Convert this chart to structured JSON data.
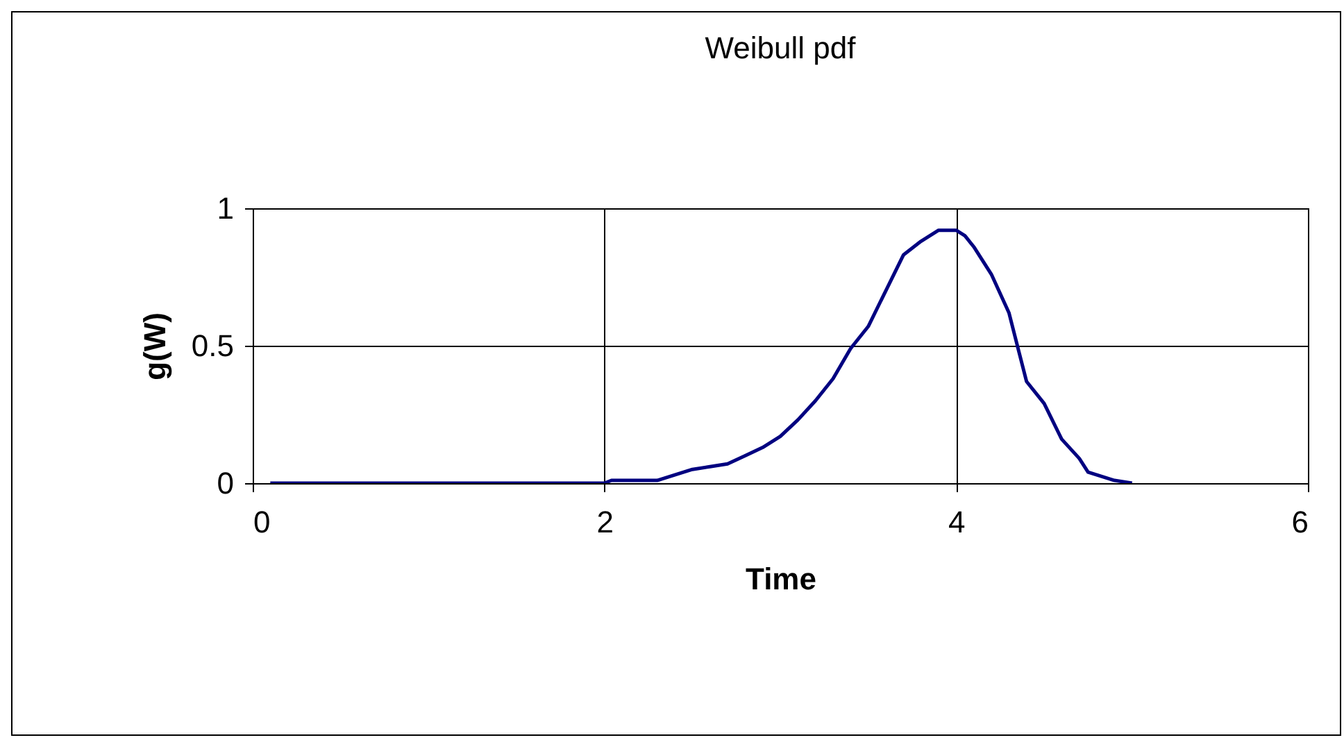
{
  "chart_data": {
    "type": "line",
    "title": "Weibull pdf",
    "xlabel": "Time",
    "ylabel": "g(W)",
    "x": [
      0.1,
      0.5,
      1,
      1.5,
      2,
      2.04,
      2.1,
      2.2,
      2.3,
      2.4,
      2.5,
      2.6,
      2.7,
      2.8,
      2.9,
      3,
      3.1,
      3.2,
      3.3,
      3.4,
      3.5,
      3.6,
      3.7,
      3.8,
      3.9,
      4,
      4.05,
      4.1,
      4.2,
      4.3,
      4.4,
      4.5,
      4.6,
      4.7,
      4.75,
      4.8,
      4.85,
      4.9,
      5
    ],
    "series": [
      {
        "color": "#000080",
        "values": [
          0,
          0,
          0,
          0,
          0,
          0.01,
          0.01,
          0.01,
          0.01,
          0.03,
          0.05,
          0.06,
          0.07,
          0.1,
          0.13,
          0.17,
          0.23,
          0.3,
          0.38,
          0.49,
          0.57,
          0.7,
          0.83,
          0.88,
          0.92,
          0.92,
          0.9,
          0.86,
          0.76,
          0.62,
          0.37,
          0.29,
          0.16,
          0.09,
          0.04,
          0.03,
          0.02,
          0.01,
          0
        ]
      }
    ],
    "xlim": [
      0,
      6
    ],
    "xticks": [
      0,
      2,
      4,
      6
    ],
    "ylim": [
      0,
      1
    ],
    "yticks": [
      0,
      0.5,
      1
    ],
    "grid": true,
    "marker": "none",
    "line_style": "solid",
    "legend": false
  }
}
